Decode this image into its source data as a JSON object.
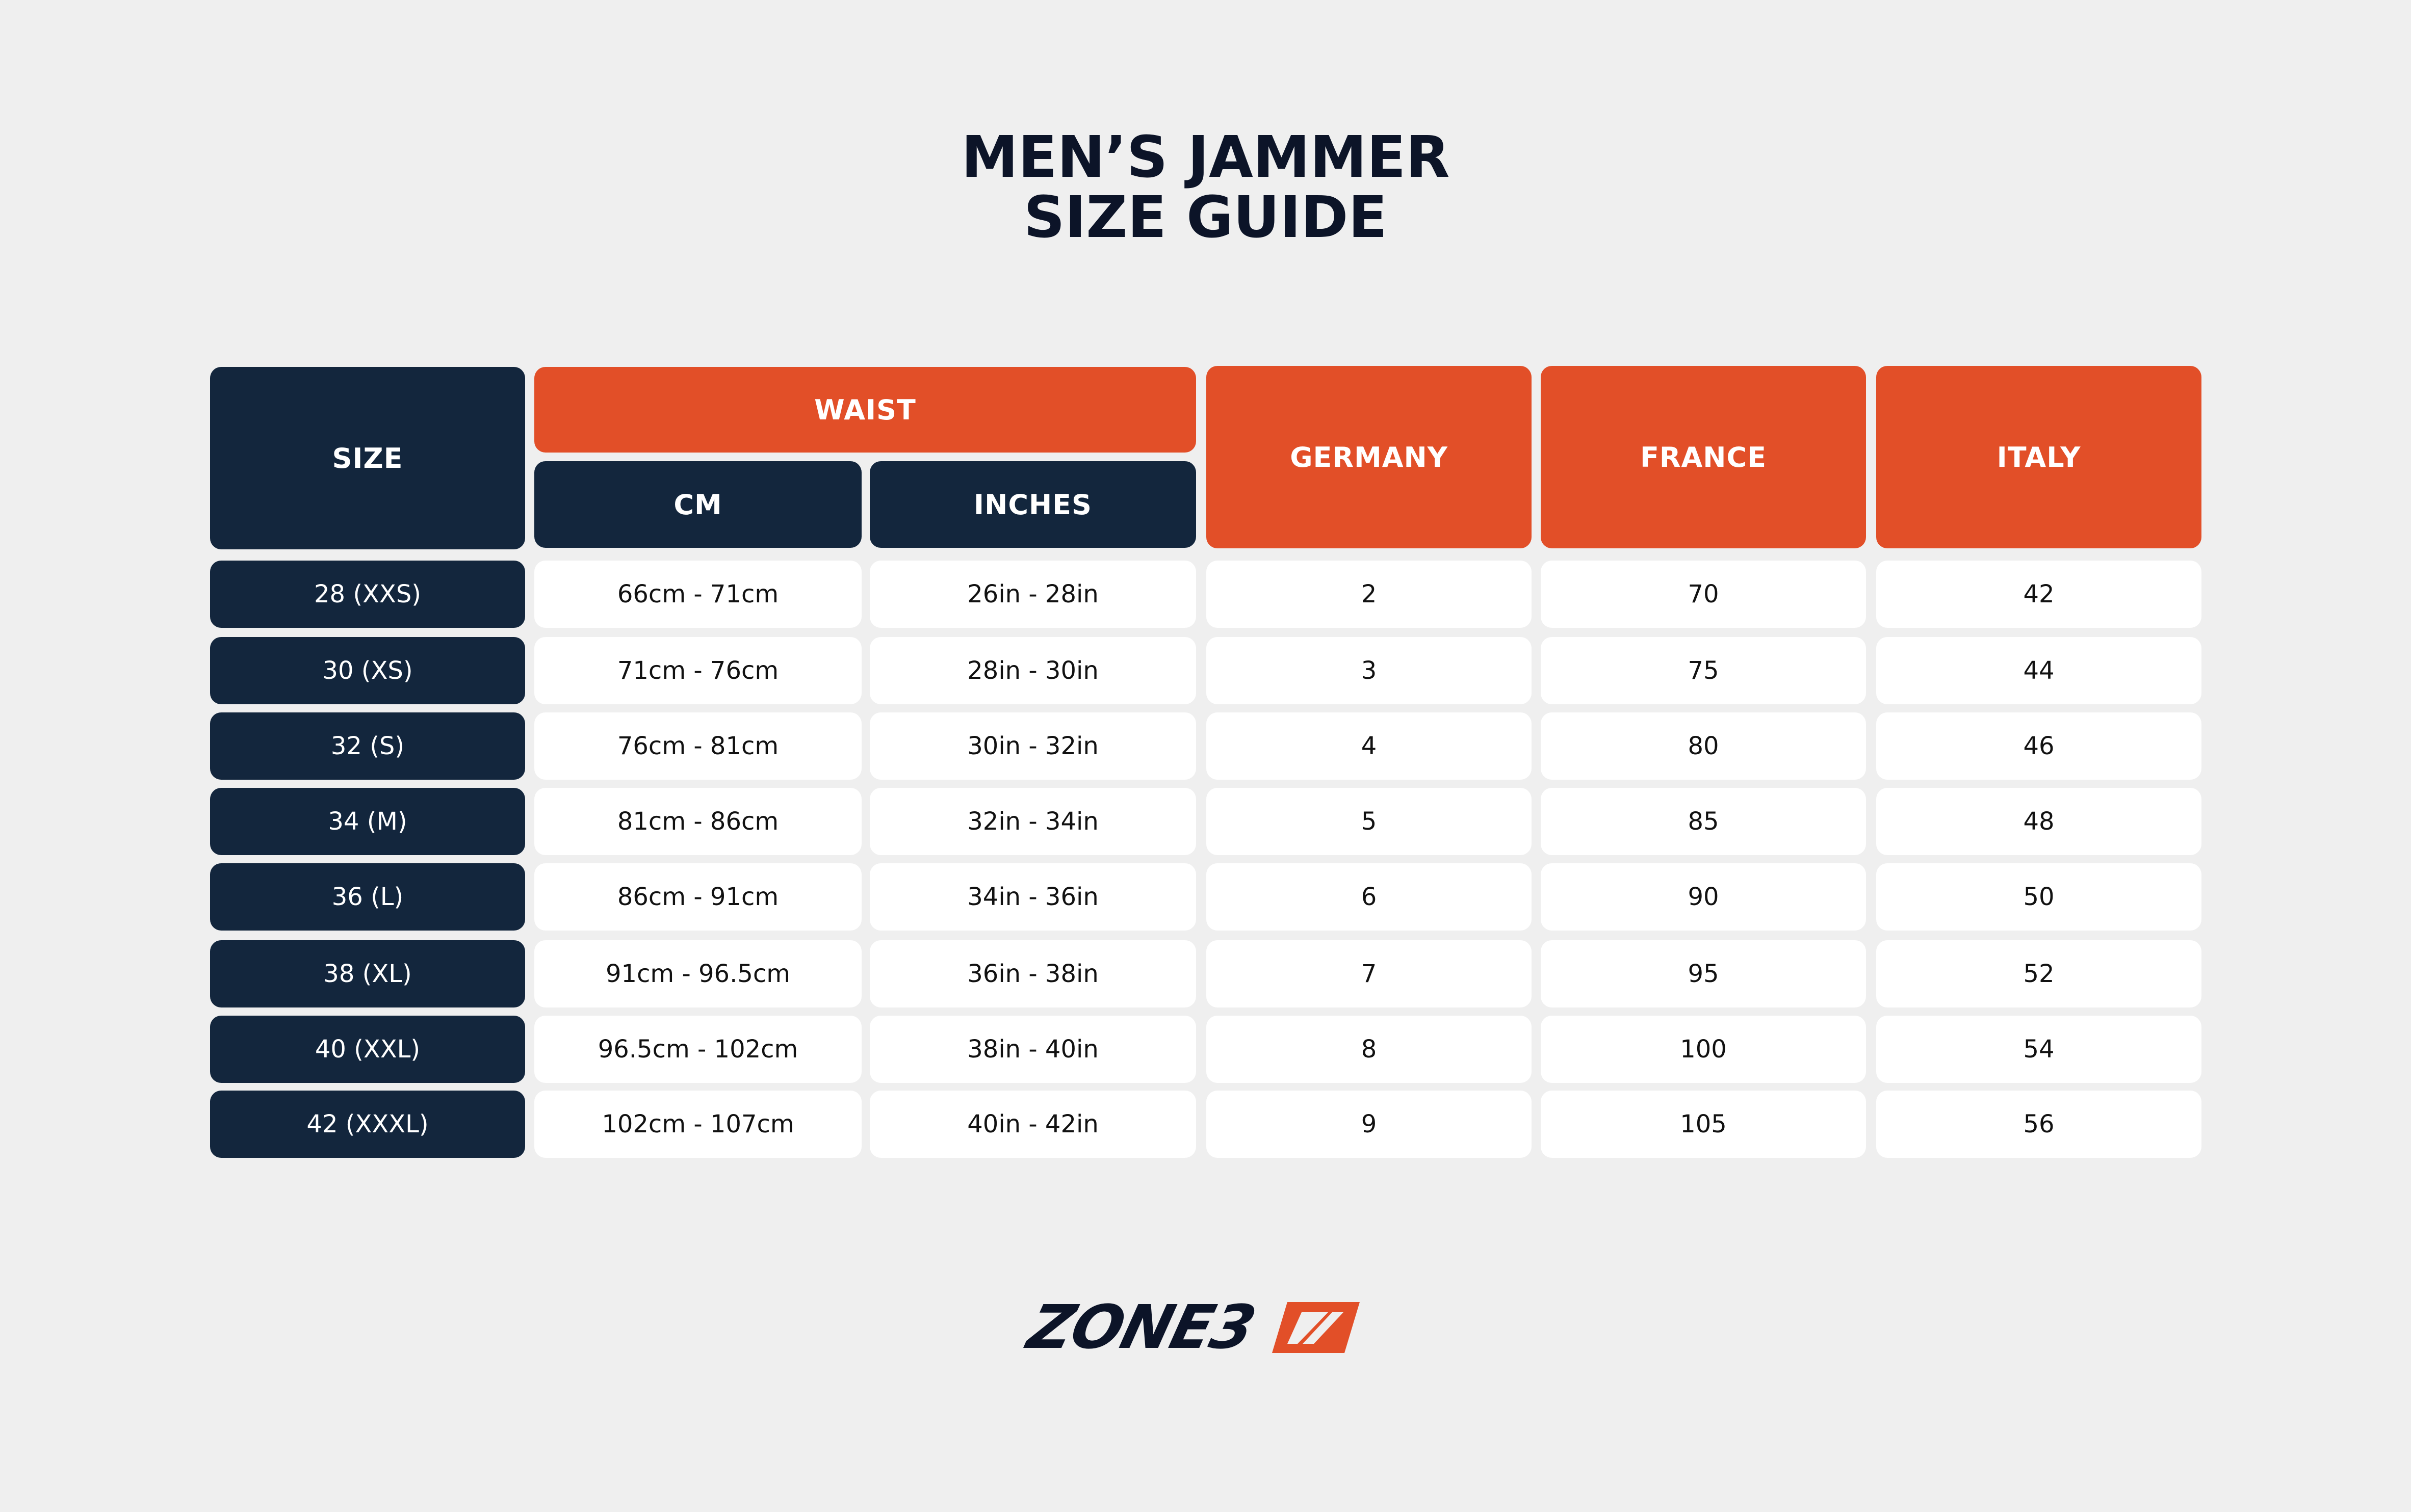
{
  "title": {
    "line1": "MEN’S JAMMER",
    "line2": "SIZE GUIDE"
  },
  "table": {
    "headers": {
      "size": "SIZE",
      "waist": "WAIST",
      "cm": "CM",
      "inches": "INCHES",
      "germany": "GERMANY",
      "france": "FRANCE",
      "italy": "ITALY"
    },
    "rows": [
      {
        "size": "28 (XXS)",
        "cm": "66cm - 71cm",
        "inches": "26in - 28in",
        "germany": "2",
        "france": "70",
        "italy": "42"
      },
      {
        "size": "30 (XS)",
        "cm": "71cm - 76cm",
        "inches": "28in - 30in",
        "germany": "3",
        "france": "75",
        "italy": "44"
      },
      {
        "size": "32 (S)",
        "cm": "76cm - 81cm",
        "inches": "30in - 32in",
        "germany": "4",
        "france": "80",
        "italy": "46"
      },
      {
        "size": "34 (M)",
        "cm": "81cm - 86cm",
        "inches": "32in - 34in",
        "germany": "5",
        "france": "85",
        "italy": "48"
      },
      {
        "size": "36 (L)",
        "cm": "86cm - 91cm",
        "inches": "34in - 36in",
        "germany": "6",
        "france": "90",
        "italy": "50"
      },
      {
        "size": "38 (XL)",
        "cm": "91cm - 96.5cm",
        "inches": "36in - 38in",
        "germany": "7",
        "france": "95",
        "italy": "52"
      },
      {
        "size": "40 (XXL)",
        "cm": "96.5cm - 102cm",
        "inches": "38in - 40in",
        "germany": "8",
        "france": "100",
        "italy": "54"
      },
      {
        "size": "42 (XXXL)",
        "cm": "102cm - 107cm",
        "inches": "40in - 42in",
        "germany": "9",
        "france": "105",
        "italy": "56"
      }
    ]
  },
  "brand": {
    "logo_text": "ZONE3"
  },
  "colors": {
    "navy": "#13263d",
    "orange": "#e24f28",
    "background": "#efefef",
    "cell": "#ffffff"
  }
}
